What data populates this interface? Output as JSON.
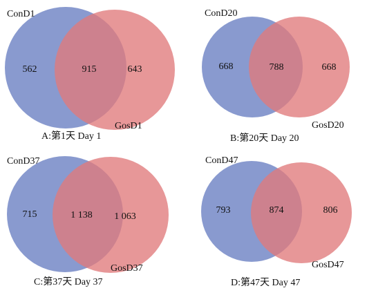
{
  "colors": {
    "left_circle": "#6f84c4",
    "right_circle": "#e07a7b",
    "overlap": "#9e5576"
  },
  "panels": [
    {
      "left_name": "ConD1",
      "right_name": "GosD1",
      "left_only": "562",
      "both": "915",
      "right_only": "643",
      "caption": "A:第1天  Day 1"
    },
    {
      "left_name": "ConD20",
      "right_name": "GosD20",
      "left_only": "668",
      "both": "788",
      "right_only": "668",
      "caption": "B:第20天  Day 20"
    },
    {
      "left_name": "ConD37",
      "right_name": "GosD37",
      "left_only": "715",
      "both": "1 138",
      "right_only": "1 063",
      "caption": "C:第37天  Day 37"
    },
    {
      "left_name": "ConD47",
      "right_name": "GosD47",
      "left_only": "793",
      "both": "874",
      "right_only": "806",
      "caption": "D:第47天  Day 47"
    }
  ]
}
